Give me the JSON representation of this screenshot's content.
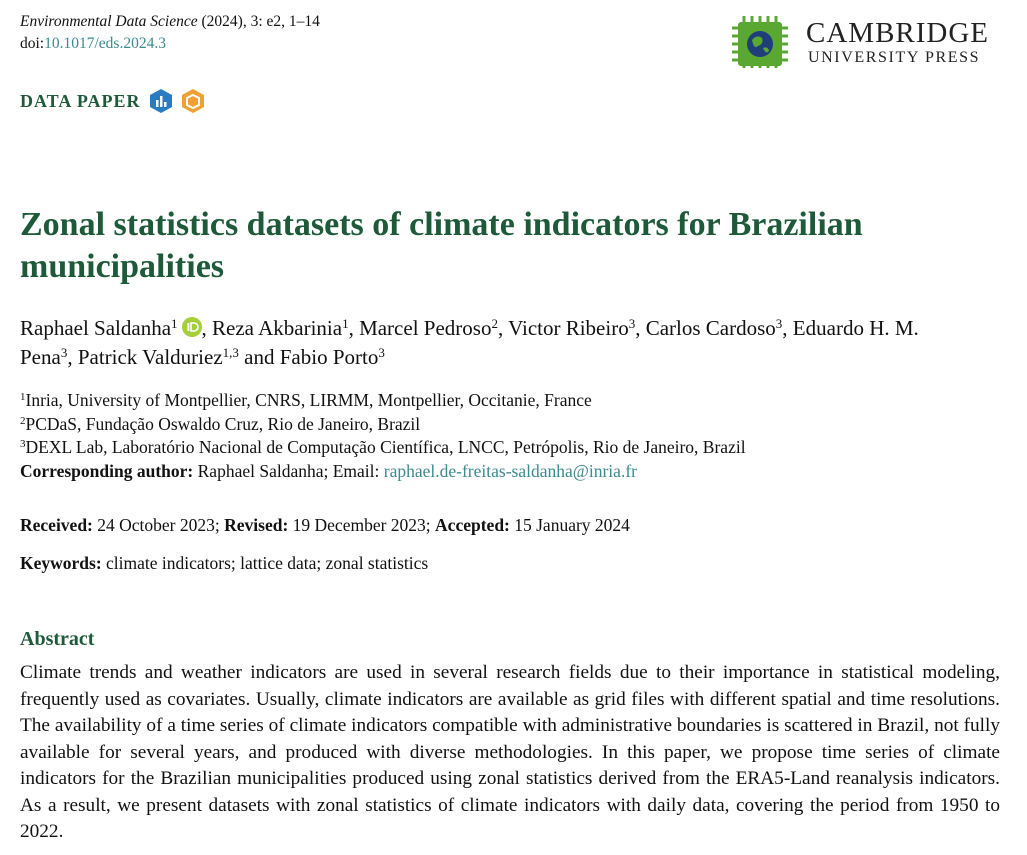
{
  "header": {
    "journal": "Environmental Data Science",
    "citation": "(2024), 3: e2, 1–14",
    "doi_prefix": "doi:",
    "doi": "10.1017/eds.2024.3",
    "publisher_line1": "CAMBRIDGE",
    "publisher_line2": "UNIVERSITY PRESS"
  },
  "article_type": "DATA PAPER",
  "title": "Zonal statistics datasets of climate indicators for Brazilian municipalities",
  "authors": [
    {
      "name": "Raphael Saldanha",
      "affiliation": "1",
      "separator": ","
    },
    {
      "name": "Reza Akbarinia",
      "affiliation": "1",
      "separator": ","
    },
    {
      "name": "Marcel Pedroso",
      "affiliation": "2",
      "separator": ","
    },
    {
      "name": "Victor Ribeiro",
      "affiliation": "3",
      "separator": ","
    },
    {
      "name": "Carlos Cardoso",
      "affiliation": "3",
      "separator": ","
    },
    {
      "name": "Eduardo H. M. Pena",
      "affiliation": "3",
      "separator": ","
    },
    {
      "name": "Patrick Valduriez",
      "affiliation": "1,3",
      "separator": "and"
    },
    {
      "name": "Fabio Porto",
      "affiliation": "3"
    }
  ],
  "affiliations": [
    {
      "number": "1",
      "text": "Inria, University of Montpellier, CNRS, LIRMM, Montpellier, Occitanie, France"
    },
    {
      "number": "2",
      "text": "PCDaS, Fundação Oswaldo Cruz, Rio de Janeiro, Brazil"
    },
    {
      "number": "3",
      "text": "DEXL Lab, Laboratório Nacional de Computação Científica, LNCC, Petrópolis, Rio de Janeiro, Brazil"
    }
  ],
  "corresponding": {
    "label": "Corresponding author:",
    "text": "Raphael Saldanha; Email:",
    "email": "raphael.de-freitas-saldanha@inria.fr"
  },
  "dates": [
    {
      "label": "Received:",
      "value": "24 October 2023;"
    },
    {
      "label": "Revised:",
      "value": "19 December 2023;"
    },
    {
      "label": "Accepted:",
      "value": "15 January 2024"
    }
  ],
  "keywords": {
    "label": "Keywords:",
    "text": "climate indicators; lattice data; zonal statistics"
  },
  "abstract": {
    "heading": "Abstract",
    "text": "Climate trends and weather indicators are used in several research fields due to their importance in statistical modeling, frequently used as covariates. Usually, climate indicators are available as grid files with different spatial and time resolutions. The availability of a time series of climate indicators compatible with administrative boundaries is scattered in Brazil, not fully available for several years, and produced with diverse methodologies. In this paper, we propose time series of climate indicators for the Brazilian municipalities produced using zonal statistics derived from the ERA5-Land reanalysis indicators. As a result, we present datasets with zonal statistics of climate indicators with daily data, covering the period from 1950 to 2022."
  }
}
